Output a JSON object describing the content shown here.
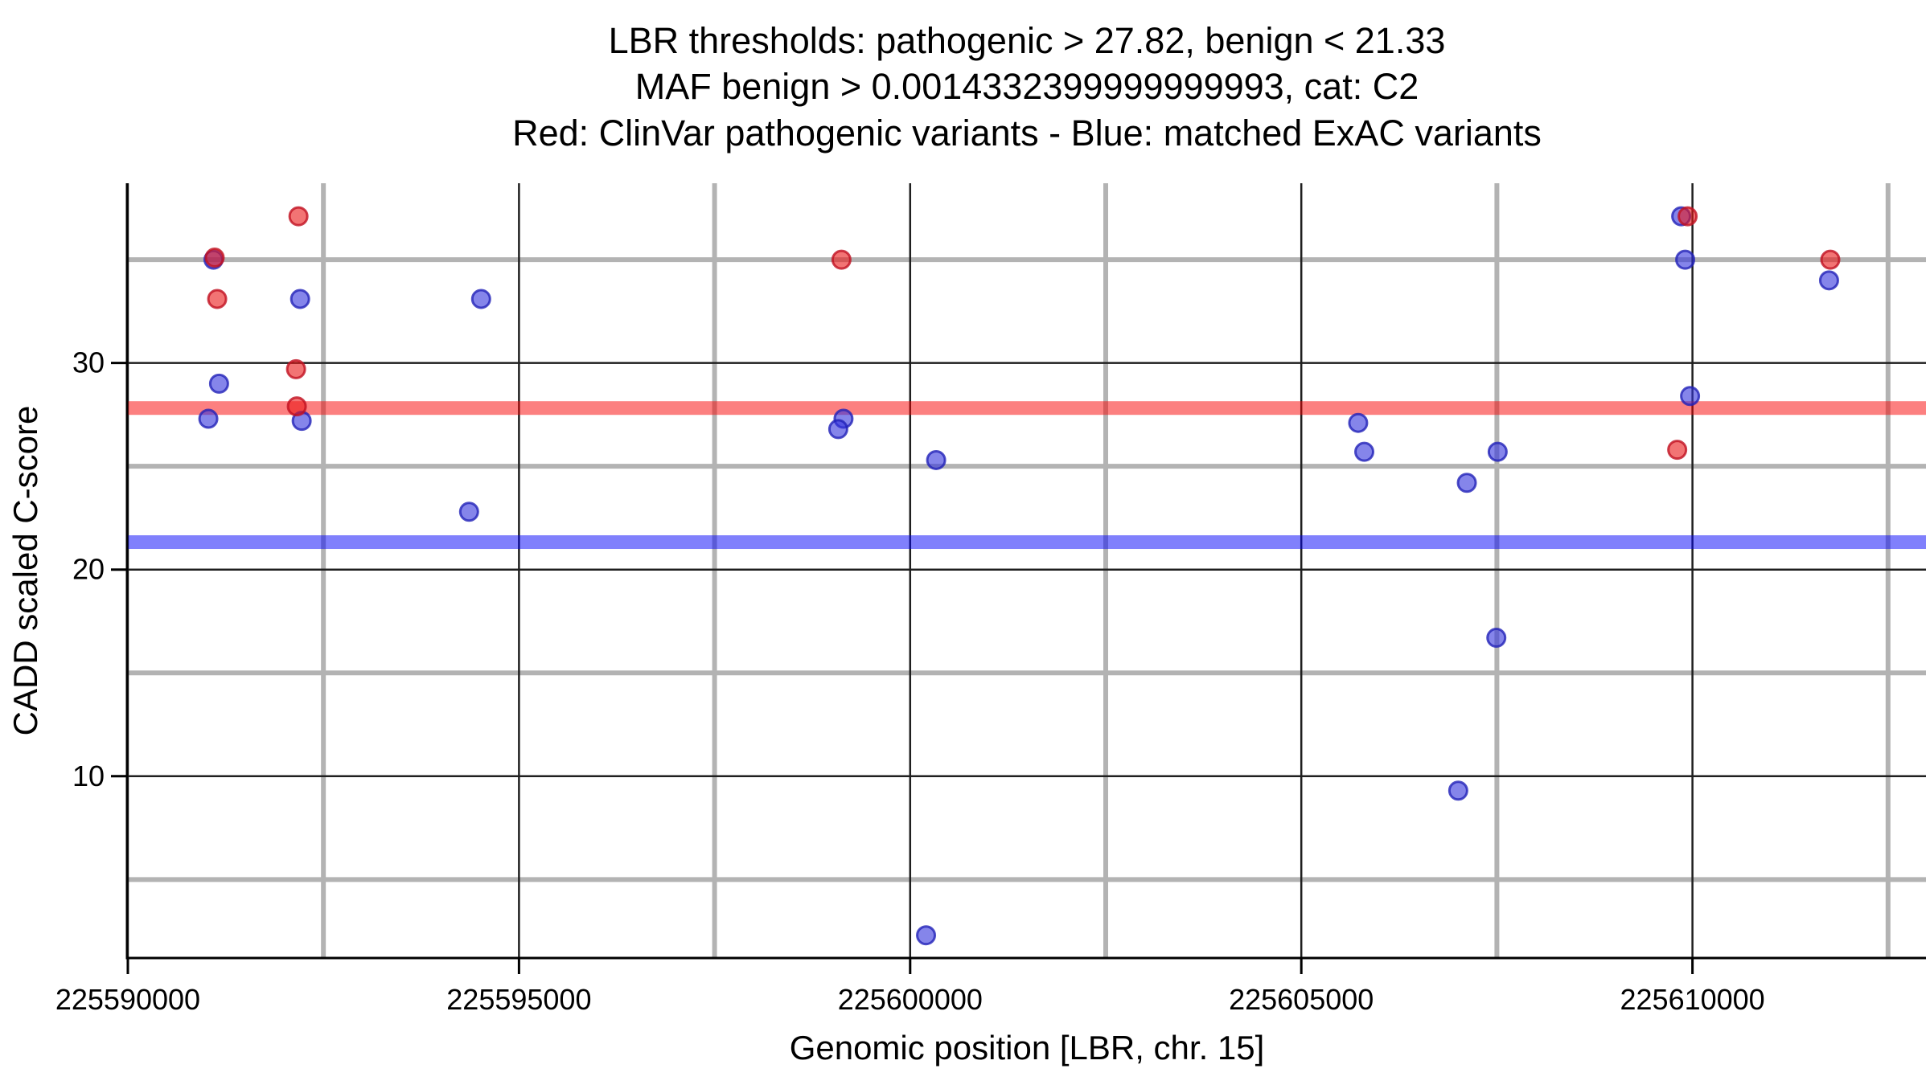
{
  "chart_data": {
    "type": "scatter",
    "title_lines": [
      "LBR thresholds: pathogenic > 27.82, benign < 21.33",
      "MAF benign > 0.0014332399999999993, cat: C2",
      "Red: ClinVar pathogenic variants - Blue: matched ExAC variants"
    ],
    "xlabel": "Genomic position [LBR, chr. 15]",
    "ylabel": "CADD scaled C-score",
    "xlim": [
      225589990,
      225612985
    ],
    "ylim": [
      1.2,
      38.7
    ],
    "x_ticks": [
      {
        "value": 225590000,
        "label": "225590000"
      },
      {
        "value": 225595000,
        "label": "225595000"
      },
      {
        "value": 225600000,
        "label": "225600000"
      },
      {
        "value": 225605000,
        "label": "225605000"
      },
      {
        "value": 225610000,
        "label": "225610000"
      }
    ],
    "x_minor_ticks": [
      225592500,
      225597500,
      225602500,
      225607500,
      225612500
    ],
    "y_ticks": [
      {
        "value": 30,
        "label": "30"
      },
      {
        "value": 20,
        "label": "20"
      },
      {
        "value": 10,
        "label": "10"
      }
    ],
    "y_minor_ticks": [
      35,
      25,
      15,
      5
    ],
    "grid": {
      "major_color": "#1f1f1f",
      "minor_color": "#b3b3b3",
      "major_width": 2.5,
      "minor_width": 6,
      "background": "#ffffff"
    },
    "thresholds": {
      "pathogenic": {
        "label": "pathogenic > 27.82",
        "value": 27.82,
        "color": "#fa0202",
        "opacity": 0.5,
        "thickness": 17
      },
      "benign": {
        "label": "benign < 21.33",
        "value": 21.33,
        "color": "#0202fa",
        "opacity": 0.5,
        "thickness": 17
      }
    },
    "legend": {
      "red_meaning": "ClinVar pathogenic variants",
      "blue_meaning": "matched ExAC variants",
      "position": "in title line 3"
    },
    "series": [
      {
        "name": "ClinVar pathogenic variants",
        "color": "#e91717",
        "stroke": "#c01020",
        "points": [
          [
            225592181,
            37.1
          ],
          [
            225609938,
            37.1
          ],
          [
            225591110,
            35.1
          ],
          [
            225599122,
            35.0
          ],
          [
            225611762,
            35.0
          ],
          [
            225591142,
            33.1
          ],
          [
            225592150,
            29.7
          ],
          [
            225592160,
            27.9
          ],
          [
            225609805,
            25.8
          ]
        ]
      },
      {
        "name": "matched ExAC variants",
        "color": "#3333dc",
        "stroke": "#2222b8",
        "points": [
          [
            225609856,
            37.1
          ],
          [
            225591095,
            35.0
          ],
          [
            225609907,
            35.0
          ],
          [
            225611746,
            34.0
          ],
          [
            225592202,
            33.1
          ],
          [
            225594516,
            33.1
          ],
          [
            225591166,
            29.0
          ],
          [
            225609969,
            28.4
          ],
          [
            225591029,
            27.3
          ],
          [
            225599148,
            27.3
          ],
          [
            225592222,
            27.2
          ],
          [
            225605727,
            27.1
          ],
          [
            225599081,
            26.8
          ],
          [
            225605805,
            25.7
          ],
          [
            225607510,
            25.7
          ],
          [
            225600332,
            25.3
          ],
          [
            225607116,
            24.2
          ],
          [
            225594362,
            22.8
          ],
          [
            225607493,
            16.7
          ],
          [
            225607006,
            9.3
          ],
          [
            225600203,
            2.3
          ]
        ]
      }
    ]
  }
}
